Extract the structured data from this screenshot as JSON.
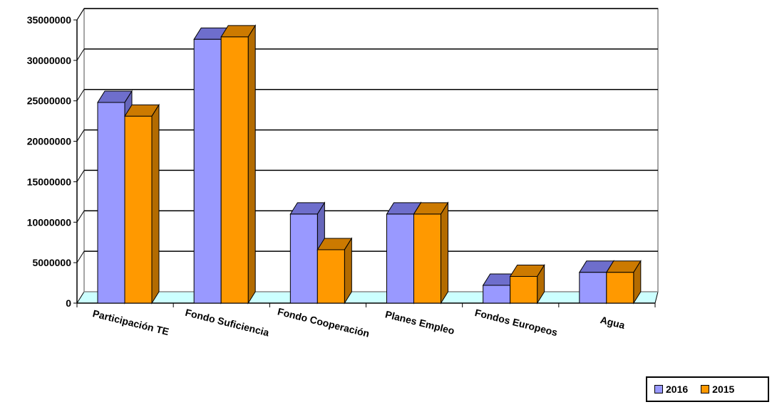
{
  "chart_data": {
    "type": "bar",
    "categories": [
      "Participación TE",
      "Fondo Suficiencia",
      "Fondo Cooperación",
      "Planes Empleo",
      "Fondos Europeos",
      "Agua"
    ],
    "series": [
      {
        "name": "2016",
        "values": [
          24800000,
          32600000,
          11000000,
          11000000,
          2200000,
          3800000
        ]
      },
      {
        "name": "2015",
        "values": [
          23100000,
          32900000,
          6600000,
          11000000,
          3300000,
          3800000
        ]
      }
    ],
    "ylim": [
      0,
      35000000
    ],
    "yticks": [
      0,
      5000000,
      10000000,
      15000000,
      20000000,
      25000000,
      30000000,
      35000000
    ],
    "grid": true,
    "legend_position": "bottom-right",
    "title": "",
    "xlabel": "",
    "ylabel": ""
  },
  "colors": {
    "series_2016_front": "#9999ff",
    "series_2016_top": "#6e6ecc",
    "series_2016_side": "#6666bb",
    "series_2015_front": "#ff9900",
    "series_2015_top": "#cc7a00",
    "series_2015_side": "#b36b00",
    "floor": "#ccffff",
    "grid": "#000000"
  }
}
